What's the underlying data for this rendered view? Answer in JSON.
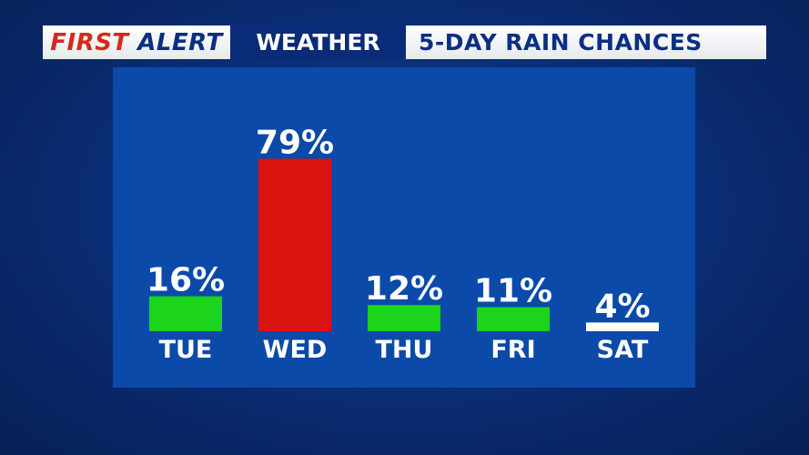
{
  "header": {
    "first": "FIRST",
    "alert": "ALERT",
    "weather": "WEATHER",
    "title": "5-DAY RAIN CHANCES"
  },
  "colors": {
    "low": "#1bd41b",
    "high": "#db1310",
    "minimal": "#ffffff",
    "panel": "#0b4aa8"
  },
  "chart_data": {
    "type": "bar",
    "title": "5-DAY RAIN CHANCES",
    "categories": [
      "TUE",
      "WED",
      "THU",
      "FRI",
      "SAT"
    ],
    "values": [
      16,
      79,
      12,
      11,
      4
    ],
    "labels": [
      "16%",
      "79%",
      "12%",
      "11%",
      "4%"
    ],
    "bar_colors": [
      "#1bd41b",
      "#db1310",
      "#1bd41b",
      "#1bd41b",
      "#ffffff"
    ],
    "ylim": [
      0,
      100
    ],
    "xlabel": "",
    "ylabel": "",
    "grid": false,
    "legend": "none"
  }
}
